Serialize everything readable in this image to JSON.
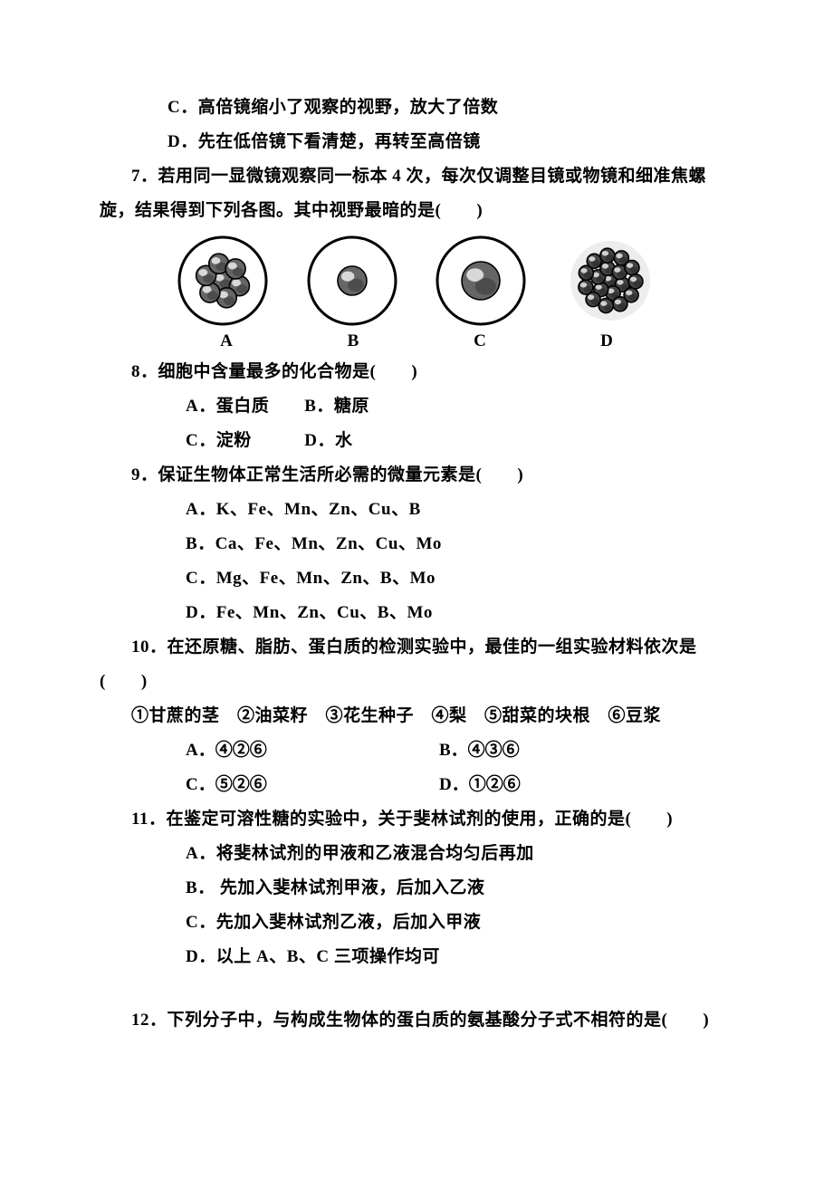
{
  "page": {
    "bg": "#ffffff",
    "text_color": "#000000",
    "font_family": "SimSun",
    "base_fontsize_pt": 14
  },
  "lines": {
    "l1": "C．高倍镜缩小了观察的视野，放大了倍数",
    "l2": "D．先在低倍镜下看清楚，再转至高倍镜",
    "q7a": "7．若用同一显微镜观察同一标本 4 次，每次仅调整目镜或物镜和细准焦螺",
    "q7b": "旋，结果得到下列各图。其中视野最暗的是(　　)",
    "fig_labels": [
      "A",
      "B",
      "C",
      "D"
    ],
    "q8": "8．细胞中含量最多的化合物是(　　)",
    "q8a": "A．蛋白质　　B．糖原",
    "q8b": "C．淀粉　　　D．水",
    "q9": "9．保证生物体正常生活所必需的微量元素是(　　)",
    "q9a": "A．K、Fe、Mn、Zn、Cu、B",
    "q9b": "B．Ca、Fe、Mn、Zn、Cu、Mo",
    "q9c": "C．Mg、Fe、Mn、Zn、B、Mo",
    "q9d": "D．Fe、Mn、Zn、Cu、B、Mo",
    "q10a": "10．在还原糖、脂肪、蛋白质的检测实验中，最佳的一组实验材料依次是",
    "q10b": "(　　)",
    "q10c": "①甘蔗的茎　②油菜籽　③花生种子　④梨　⑤甜菜的块根　⑥豆浆",
    "q10opt_a": "A．④②⑥",
    "q10opt_b": "B．④③⑥",
    "q10opt_c": "C．⑤②⑥",
    "q10opt_d": "D．①②⑥",
    "q11": "11．在鉴定可溶性糖的实验中，关于斐林试剂的使用，正确的是(　　)",
    "q11a": "A．将斐林试剂的甲液和乙液混合均匀后再加",
    "q11b": "B．  先加入斐林试剂甲液，后加入乙液",
    "q11c": "C．先加入斐林试剂乙液，后加入甲液",
    "q11d": "D．以上 A、B、C 三项操作均可",
    "q12": "12．下列分子中，与构成生物体的蛋白质的氨基酸分子式不相符的是(　　)"
  },
  "figures": {
    "type": "cell-microscope-views",
    "items": [
      {
        "label": "A",
        "cell_count": 13,
        "cell_r": 11,
        "outline": true,
        "stroke": "#000000",
        "fill": "#666666",
        "bg": "#ffffff"
      },
      {
        "label": "B",
        "cell_count": 7,
        "cell_r": 16,
        "outline": true,
        "stroke": "#000000",
        "fill": "#666666",
        "bg": "#ffffff"
      },
      {
        "label": "C",
        "cell_count": 4,
        "cell_r": 21,
        "outline": true,
        "stroke": "#000000",
        "fill": "#666666",
        "bg": "#ffffff"
      },
      {
        "label": "D",
        "cell_count": 22,
        "cell_r": 8,
        "outline": false,
        "stroke": "#000000",
        "fill": "#444444",
        "bg": "#ffffff"
      }
    ],
    "view_diameter": 96
  }
}
